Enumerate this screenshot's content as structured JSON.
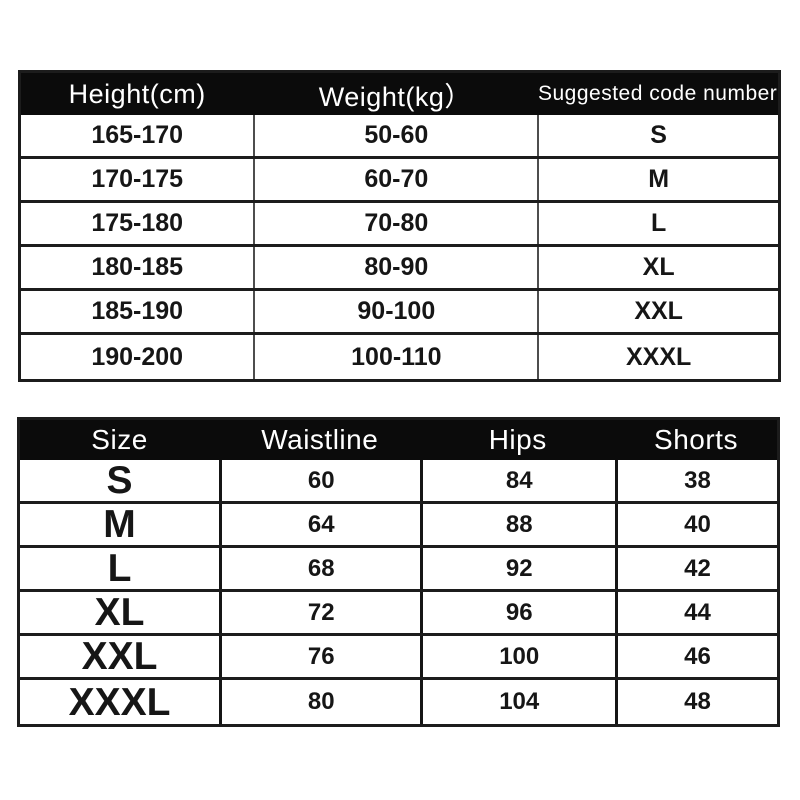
{
  "colors": {
    "background": "#ffffff",
    "header_bg": "#0b0b0b",
    "header_text": "#ffffff",
    "body_text": "#161616",
    "grid_line": "#1c1c1c"
  },
  "size_chart_top": {
    "headers": [
      "Height(cm)",
      "Weight(kg）",
      "Suggested code number"
    ],
    "rows": [
      [
        "165-170",
        "50-60",
        "S"
      ],
      [
        "170-175",
        "60-70",
        "M"
      ],
      [
        "175-180",
        "70-80",
        "L"
      ],
      [
        "180-185",
        "80-90",
        "XL"
      ],
      [
        "185-190",
        "90-100",
        "XXL"
      ],
      [
        "190-200",
        "100-110",
        "XXXL"
      ]
    ]
  },
  "size_chart_bottom": {
    "headers": [
      "Size",
      "Waistline",
      "Hips",
      "Shorts"
    ],
    "rows": [
      [
        "S",
        "60",
        "84",
        "38"
      ],
      [
        "M",
        "64",
        "88",
        "40"
      ],
      [
        "L",
        "68",
        "92",
        "42"
      ],
      [
        "XL",
        "72",
        "96",
        "44"
      ],
      [
        "XXL",
        "76",
        "100",
        "46"
      ],
      [
        "XXXL",
        "80",
        "104",
        "48"
      ]
    ]
  }
}
